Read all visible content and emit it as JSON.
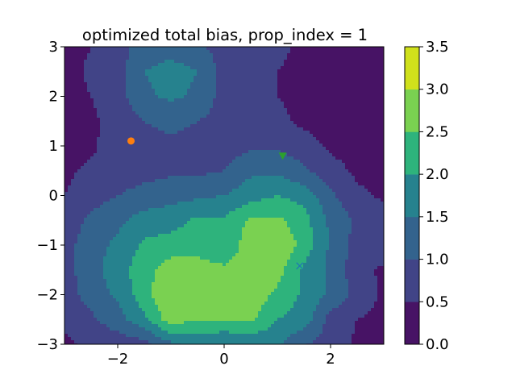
{
  "chart_data": {
    "type": "contourf",
    "title": "optimized total bias, prop_index = 1",
    "xlabel": "",
    "ylabel": "",
    "xlim": [
      -3,
      3
    ],
    "ylim": [
      -3,
      3
    ],
    "x_ticks": [
      -2,
      0,
      2
    ],
    "x_tick_labels": [
      "−2",
      "0",
      "2"
    ],
    "y_ticks": [
      -3,
      -2,
      -1,
      0,
      1,
      2,
      3
    ],
    "y_tick_labels": [
      "−3",
      "−2",
      "−1",
      "0",
      "1",
      "2",
      "3"
    ],
    "grid": false,
    "colorbar": {
      "levels": [
        0.0,
        0.5,
        1.0,
        1.5,
        2.0,
        2.5,
        3.0,
        3.5
      ],
      "tick_labels": [
        "0.0",
        "0.5",
        "1.0",
        "1.5",
        "2.0",
        "2.5",
        "3.0",
        "3.5"
      ],
      "colors": [
        "#471365",
        "#414487",
        "#33638d",
        "#26828e",
        "#2eb37c",
        "#7ad151",
        "#d0e11c"
      ]
    },
    "grid_x": [
      -3,
      -2.5,
      -2,
      -1.5,
      -1,
      -0.5,
      0,
      0.5,
      1,
      1.5,
      2,
      2.5,
      3
    ],
    "grid_y": [
      -3,
      -2.5,
      -2,
      -1.5,
      -1,
      -0.5,
      0,
      0.5,
      1,
      1.5,
      2,
      2.5,
      3
    ],
    "z": [
      [
        0.4,
        0.6,
        0.7,
        0.8,
        1.4,
        1.6,
        1.5,
        1.6,
        1.6,
        1.0,
        0.8,
        0.4,
        0.4
      ],
      [
        0.6,
        0.9,
        1.3,
        1.9,
        2.8,
        2.5,
        2.5,
        2.6,
        2.0,
        1.8,
        0.8,
        0.5,
        0.4
      ],
      [
        0.8,
        1.2,
        1.6,
        2.3,
        3.0,
        3.0,
        2.7,
        2.8,
        2.4,
        1.9,
        1.4,
        0.8,
        0.4
      ],
      [
        0.8,
        1.3,
        1.8,
        2.3,
        2.8,
        2.7,
        2.6,
        2.7,
        2.7,
        1.9,
        1.4,
        0.7,
        0.4
      ],
      [
        0.8,
        1.3,
        1.6,
        2.1,
        2.2,
        2.3,
        2.1,
        2.8,
        3.0,
        2.3,
        1.4,
        0.8,
        0.8
      ],
      [
        0.7,
        1.1,
        1.4,
        1.7,
        1.8,
        2.1,
        2.1,
        2.6,
        2.6,
        2.2,
        1.4,
        0.9,
        0.8
      ],
      [
        0.5,
        0.8,
        1.0,
        1.2,
        1.3,
        1.4,
        1.5,
        1.8,
        2.0,
        1.8,
        1.1,
        0.6,
        0.4
      ],
      [
        0.4,
        0.6,
        0.7,
        0.8,
        0.9,
        0.9,
        1.0,
        1.4,
        1.4,
        1.1,
        0.7,
        0.4,
        0.4
      ],
      [
        0.3,
        0.4,
        0.8,
        0.9,
        0.9,
        0.9,
        0.8,
        0.9,
        0.9,
        0.7,
        0.4,
        0.3,
        0.3
      ],
      [
        0.3,
        0.4,
        0.7,
        1.0,
        1.1,
        1.0,
        0.8,
        0.7,
        0.6,
        0.4,
        0.3,
        0.3,
        0.3
      ],
      [
        0.3,
        0.5,
        0.8,
        1.4,
        1.6,
        1.4,
        0.8,
        0.6,
        0.5,
        0.4,
        0.3,
        0.3,
        0.3
      ],
      [
        0.3,
        0.6,
        0.8,
        1.5,
        1.7,
        1.5,
        0.8,
        0.6,
        0.5,
        0.4,
        0.3,
        0.3,
        0.3
      ],
      [
        0.3,
        0.5,
        0.8,
        1.2,
        1.3,
        1.1,
        0.8,
        0.6,
        0.6,
        0.4,
        0.3,
        0.3,
        0.3
      ]
    ],
    "markers": [
      {
        "shape": "circle",
        "x": -1.75,
        "y": 1.1,
        "color": "#ff7f0e"
      },
      {
        "shape": "triangle-down",
        "x": 1.1,
        "y": 0.8,
        "color": "#2ca02c"
      },
      {
        "shape": "x",
        "x": 1.42,
        "y": -1.42,
        "color": "#1f77b4"
      }
    ]
  }
}
